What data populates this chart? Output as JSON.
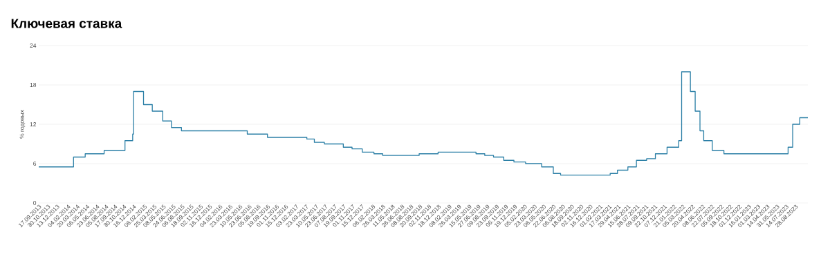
{
  "chart_data": {
    "type": "step",
    "title": "Ключевая ставка",
    "ylabel": "% годовых",
    "color": "#2b7fa6",
    "grid": "y",
    "x": [
      "2013-09-17",
      "2014-03-03",
      "2014-04-28",
      "2014-07-28",
      "2014-11-05",
      "2014-12-12",
      "2014-12-16",
      "2015-02-02",
      "2015-03-16",
      "2015-05-05",
      "2015-06-16",
      "2015-08-03",
      "2016-06-14",
      "2016-09-19",
      "2017-03-27",
      "2017-05-02",
      "2017-06-19",
      "2017-09-18",
      "2017-10-30",
      "2017-12-18",
      "2018-02-12",
      "2018-03-26",
      "2018-09-17",
      "2018-12-17",
      "2019-06-17",
      "2019-07-29",
      "2019-09-09",
      "2019-10-28",
      "2019-12-16",
      "2020-02-10",
      "2020-04-27",
      "2020-06-22",
      "2020-07-27",
      "2021-03-22",
      "2021-04-26",
      "2021-06-15",
      "2021-07-26",
      "2021-09-13",
      "2021-10-25",
      "2021-12-20",
      "2022-02-14",
      "2022-02-28",
      "2022-04-11",
      "2022-05-04",
      "2022-05-27",
      "2022-06-14",
      "2022-07-25",
      "2022-09-19",
      "2023-07-24",
      "2023-08-15",
      "2023-09-18",
      "2023-10-27"
    ],
    "values": [
      5.5,
      7,
      7.5,
      8,
      9.5,
      10.5,
      17,
      15,
      14,
      12.5,
      11.5,
      11,
      10.5,
      10,
      9.75,
      9.25,
      9,
      8.5,
      8.25,
      7.75,
      7.5,
      7.25,
      7.5,
      7.75,
      7.5,
      7.25,
      7,
      6.5,
      6.25,
      6,
      5.5,
      4.5,
      4.25,
      4.5,
      5,
      5.5,
      6.5,
      6.75,
      7.5,
      8.5,
      9.5,
      20,
      17,
      14,
      11,
      9.5,
      8,
      7.5,
      8.5,
      12,
      13,
      13
    ],
    "xlim": [
      "2013-09-17",
      "2023-10-27"
    ],
    "ylim": [
      0,
      24
    ],
    "yticks": [
      0,
      6,
      12,
      18,
      24
    ],
    "xticks": [
      {
        "value": "2013-09-17",
        "label": "17.09.2013"
      },
      {
        "value": "2013-10-30",
        "label": "30.10.2013"
      },
      {
        "value": "2013-12-13",
        "label": "13.12.2013"
      },
      {
        "value": "2014-02-04",
        "label": "04.02.2014"
      },
      {
        "value": "2014-03-20",
        "label": "20.03.2014"
      },
      {
        "value": "2014-05-06",
        "label": "06.05.2014"
      },
      {
        "value": "2014-06-23",
        "label": "23.06.2014"
      },
      {
        "value": "2014-08-05",
        "label": "05.08.2014"
      },
      {
        "value": "2014-09-17",
        "label": "17.09.2014"
      },
      {
        "value": "2014-10-30",
        "label": "30.10.2014"
      },
      {
        "value": "2014-12-16",
        "label": "16.12.2014"
      },
      {
        "value": "2015-02-06",
        "label": "06.02.2015"
      },
      {
        "value": "2015-03-25",
        "label": "25.03.2015"
      },
      {
        "value": "2015-05-08",
        "label": "08.05.2015"
      },
      {
        "value": "2015-06-24",
        "label": "24.06.2015"
      },
      {
        "value": "2015-08-06",
        "label": "06.08.2015"
      },
      {
        "value": "2015-09-18",
        "label": "18.09.2015"
      },
      {
        "value": "2015-11-02",
        "label": "02.11.2015"
      },
      {
        "value": "2015-12-16",
        "label": "16.12.2015"
      },
      {
        "value": "2016-02-04",
        "label": "04.02.2016"
      },
      {
        "value": "2016-03-23",
        "label": "23.03.2016"
      },
      {
        "value": "2016-05-10",
        "label": "10.05.2016"
      },
      {
        "value": "2016-06-23",
        "label": "23.06.2016"
      },
      {
        "value": "2016-08-05",
        "label": "05.08.2016"
      },
      {
        "value": "2016-09-19",
        "label": "19.09.2016"
      },
      {
        "value": "2016-11-01",
        "label": "01.11.2016"
      },
      {
        "value": "2016-12-15",
        "label": "15.12.2016"
      },
      {
        "value": "2017-02-03",
        "label": "03.02.2017"
      },
      {
        "value": "2017-03-23",
        "label": "23.03.2017"
      },
      {
        "value": "2017-05-10",
        "label": "10.05.2017"
      },
      {
        "value": "2017-06-23",
        "label": "23.06.2017"
      },
      {
        "value": "2017-08-07",
        "label": "07.08.2017"
      },
      {
        "value": "2017-09-19",
        "label": "19.09.2017"
      },
      {
        "value": "2017-11-01",
        "label": "01.11.2017"
      },
      {
        "value": "2017-12-15",
        "label": "15.12.2017"
      },
      {
        "value": "2018-02-06",
        "label": "06.02.2018"
      },
      {
        "value": "2018-03-26",
        "label": "26.03.2018"
      },
      {
        "value": "2018-05-11",
        "label": "11.05.2018"
      },
      {
        "value": "2018-06-26",
        "label": "26.06.2018"
      },
      {
        "value": "2018-08-08",
        "label": "08.08.2018"
      },
      {
        "value": "2018-09-20",
        "label": "20.09.2018"
      },
      {
        "value": "2018-11-02",
        "label": "02.11.2018"
      },
      {
        "value": "2018-12-18",
        "label": "18.12.2018"
      },
      {
        "value": "2019-02-08",
        "label": "08.02.2019"
      },
      {
        "value": "2019-03-26",
        "label": "26.03.2019"
      },
      {
        "value": "2019-05-15",
        "label": "15.05.2019"
      },
      {
        "value": "2019-06-27",
        "label": "27.06.2019"
      },
      {
        "value": "2019-08-09",
        "label": "09.08.2019"
      },
      {
        "value": "2019-09-23",
        "label": "23.09.2019"
      },
      {
        "value": "2019-11-06",
        "label": "06.11.2019"
      },
      {
        "value": "2019-12-19",
        "label": "19.12.2019"
      },
      {
        "value": "2020-02-05",
        "label": "05.02.2020"
      },
      {
        "value": "2020-03-23",
        "label": "23.03.2020"
      },
      {
        "value": "2020-05-06",
        "label": "06.05.2020"
      },
      {
        "value": "2020-06-22",
        "label": "22.06.2020"
      },
      {
        "value": "2020-08-06",
        "label": "06.08.2020"
      },
      {
        "value": "2020-09-18",
        "label": "18.09.2020"
      },
      {
        "value": "2020-11-02",
        "label": "02.11.2020"
      },
      {
        "value": "2020-12-16",
        "label": "16.12.2020"
      },
      {
        "value": "2021-02-01",
        "label": "01.02.2021"
      },
      {
        "value": "2021-03-17",
        "label": "17.03.2021"
      },
      {
        "value": "2021-04-29",
        "label": "29.04.2021"
      },
      {
        "value": "2021-06-15",
        "label": "15.06.2021"
      },
      {
        "value": "2021-07-28",
        "label": "28.07.2021"
      },
      {
        "value": "2021-09-09",
        "label": "09.09.2021"
      },
      {
        "value": "2021-10-22",
        "label": "22.10.2021"
      },
      {
        "value": "2021-12-07",
        "label": "07.12.2021"
      },
      {
        "value": "2022-01-21",
        "label": "21.01.2022"
      },
      {
        "value": "2022-03-05",
        "label": "05.03.2022"
      },
      {
        "value": "2022-04-20",
        "label": "20.04.2022"
      },
      {
        "value": "2022-06-08",
        "label": "08.06.2022"
      },
      {
        "value": "2022-07-22",
        "label": "22.07.2022"
      },
      {
        "value": "2022-09-05",
        "label": "05.09.2022"
      },
      {
        "value": "2022-10-18",
        "label": "18.10.2022"
      },
      {
        "value": "2022-12-01",
        "label": "01.12.2022"
      },
      {
        "value": "2023-01-16",
        "label": "16.01.2023"
      },
      {
        "value": "2023-03-01",
        "label": "01.03.2023"
      },
      {
        "value": "2023-04-14",
        "label": "14.04.2023"
      },
      {
        "value": "2023-05-31",
        "label": "31.05.2023"
      },
      {
        "value": "2023-07-14",
        "label": "14.07.2023"
      },
      {
        "value": "2023-08-28",
        "label": "28.08.2023"
      }
    ]
  }
}
